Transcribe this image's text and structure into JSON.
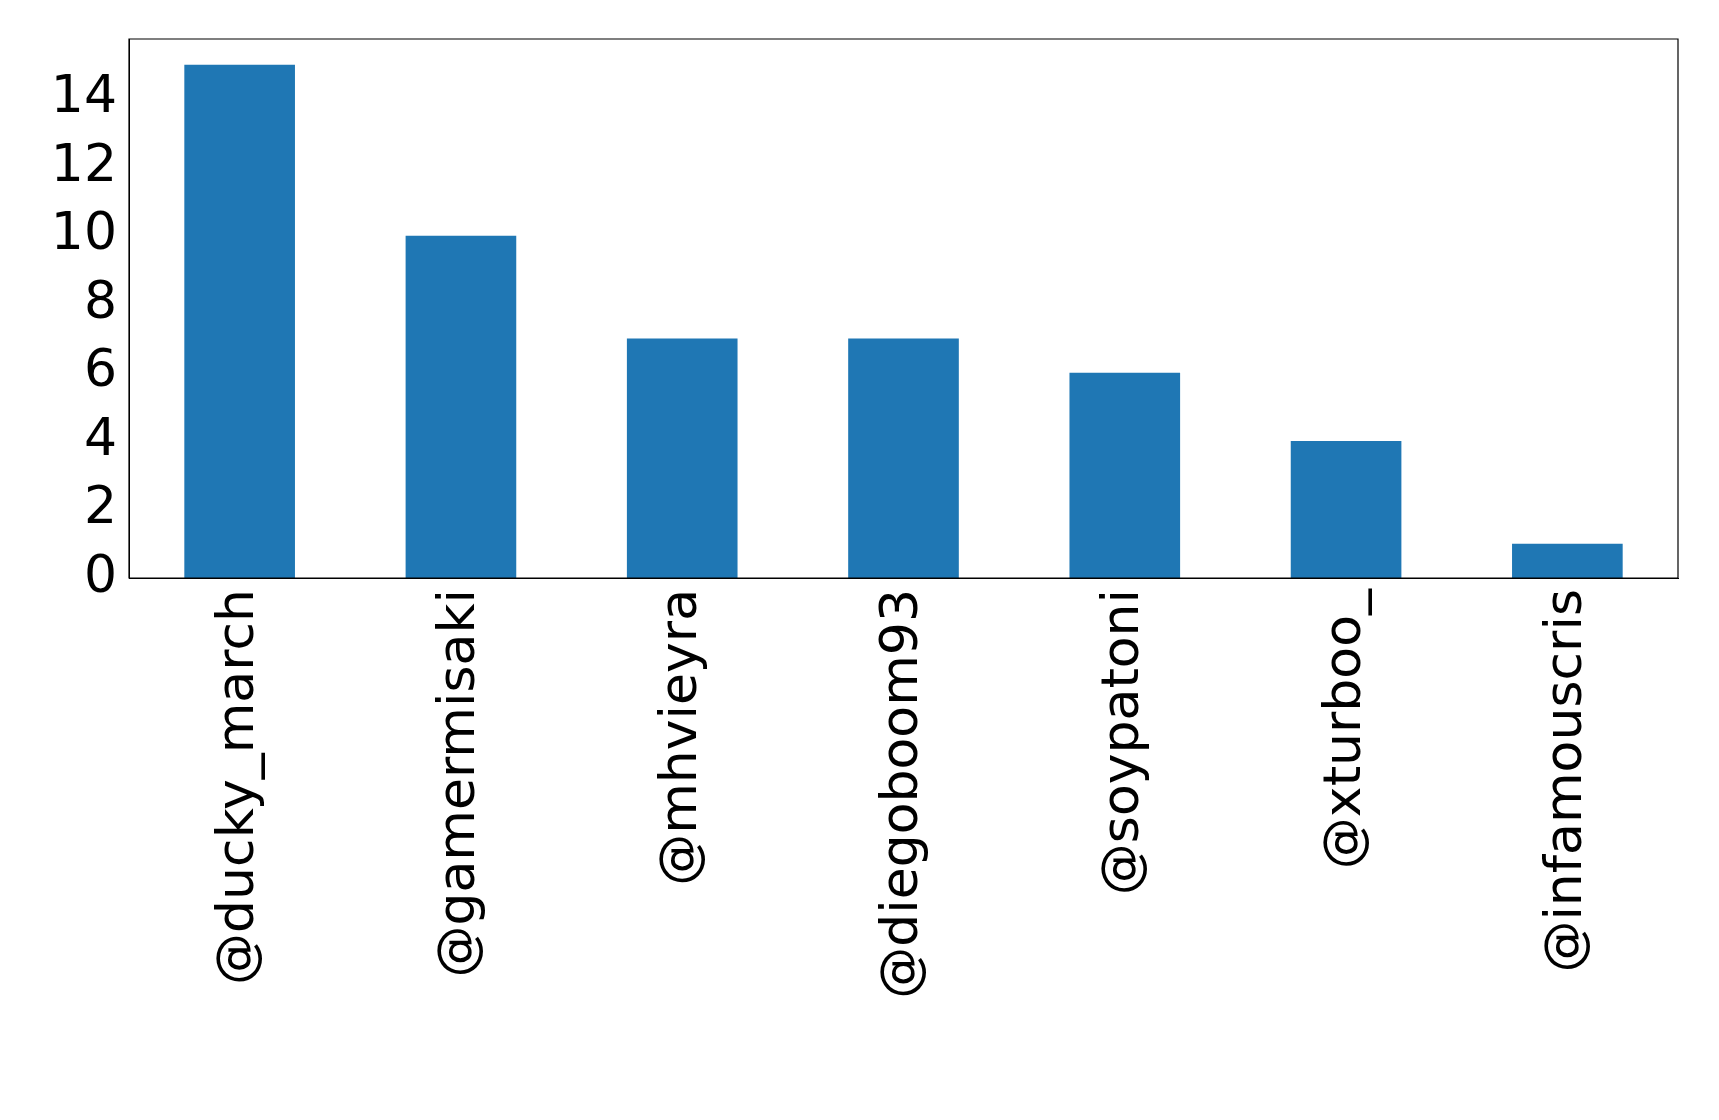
{
  "chart_data": {
    "type": "bar",
    "categories": [
      "@ducky_march",
      "@gamermisaki",
      "@mhvieyra",
      "@diegoboom93",
      "@soypatoni",
      "@xturboo_",
      "@infamouscris"
    ],
    "values": [
      15,
      10,
      7,
      7,
      6,
      4,
      1
    ],
    "color": "#1f77b4",
    "ylim": [
      0,
      15.75
    ],
    "yticks": [
      0,
      2,
      4,
      6,
      8,
      10,
      12,
      14
    ],
    "grid": false,
    "legend": false
  }
}
